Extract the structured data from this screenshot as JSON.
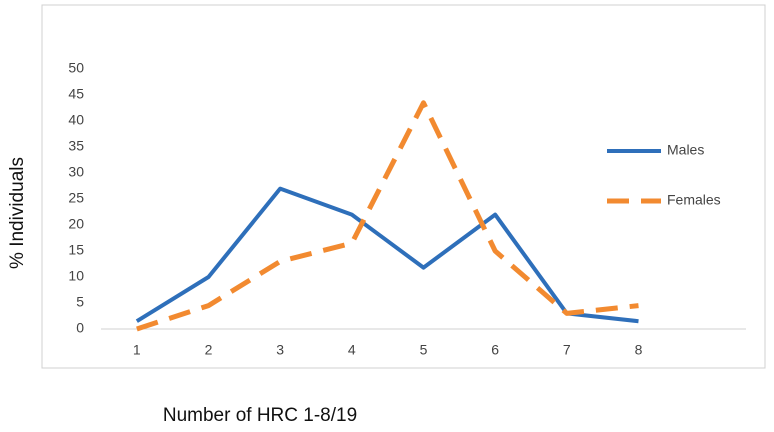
{
  "chart_data": {
    "type": "line",
    "x_label": "Number of HRC 1-8/19",
    "y_label": "% Individuals",
    "x": [
      1,
      2,
      3,
      4,
      5,
      6,
      7,
      8
    ],
    "xlim": [
      0.5,
      9.5
    ],
    "xticks": [
      1,
      2,
      3,
      4,
      5,
      6,
      7,
      8
    ],
    "ylim": [
      0,
      50
    ],
    "yticks": [
      0,
      5,
      10,
      15,
      20,
      25,
      30,
      35,
      40,
      45,
      50
    ],
    "grid": false,
    "legend": "right",
    "series": [
      {
        "name": "Males",
        "color": "#2e6fba",
        "dash": false,
        "values": [
          1.5,
          10,
          27,
          22,
          11.8,
          22,
          3,
          1.5
        ]
      },
      {
        "name": "Females",
        "color": "#f28a30",
        "dash": true,
        "values": [
          0,
          4.5,
          13,
          16.5,
          43.5,
          15,
          3,
          4.5
        ]
      }
    ]
  }
}
